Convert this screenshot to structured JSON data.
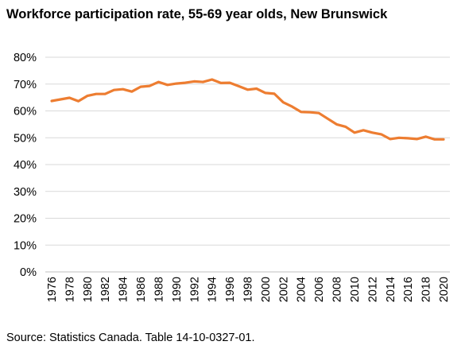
{
  "chart_data": {
    "type": "line",
    "title": "Workforce participation rate, 55-69 year olds, New Brunswick",
    "xlabel": "",
    "ylabel": "",
    "ylim": [
      0,
      80
    ],
    "y_ticks": [
      "0%",
      "10%",
      "20%",
      "30%",
      "40%",
      "50%",
      "60%",
      "70%",
      "80%"
    ],
    "x_tick_labels": [
      "1976",
      "1978",
      "1980",
      "1982",
      "1984",
      "1986",
      "1988",
      "1990",
      "1992",
      "1994",
      "1996",
      "1998",
      "2000",
      "2002",
      "2004",
      "2006",
      "2008",
      "2010",
      "2012",
      "2014",
      "2016",
      "2018",
      "2020"
    ],
    "grid": true,
    "legend": "none",
    "line_color": "#ED7D31",
    "grid_color": "#D9D9D9",
    "series": [
      {
        "x": [
          1976,
          1977,
          1978,
          1979,
          1980,
          1981,
          1982,
          1983,
          1984,
          1985,
          1986,
          1987,
          1988,
          1989,
          1990,
          1991,
          1992,
          1993,
          1994,
          1995,
          1996,
          1997,
          1998,
          1999,
          2000,
          2001,
          2002,
          2003,
          2004,
          2005,
          2006,
          2007,
          2008,
          2009,
          2010,
          2011,
          2012,
          2013,
          2014,
          2015,
          2016,
          2017,
          2018,
          2019,
          2020
        ],
        "values": [
          63.7,
          64.3,
          64.9,
          63.6,
          65.6,
          66.3,
          66.3,
          67.8,
          68.1,
          67.2,
          69.0,
          69.3,
          70.8,
          69.7,
          70.2,
          70.5,
          71.0,
          70.8,
          71.7,
          70.4,
          70.5,
          69.2,
          67.9,
          68.3,
          66.7,
          66.4,
          63.2,
          61.6,
          59.6,
          59.5,
          59.2,
          57.1,
          55.0,
          54.1,
          51.9,
          52.8,
          51.9,
          51.3,
          49.5,
          50.0,
          49.8,
          49.5,
          50.4,
          49.4,
          49.4
        ]
      }
    ],
    "source": "Source: Statistics Canada. Table 14-10-0327-01."
  }
}
